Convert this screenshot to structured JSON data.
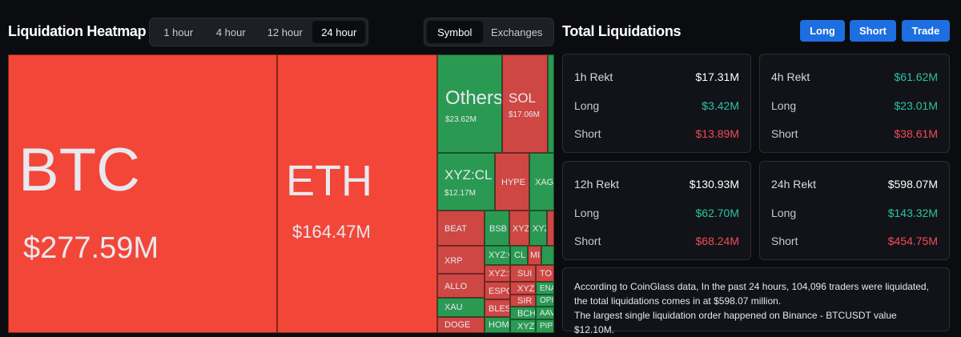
{
  "heatmap": {
    "title": "Liquidation Heatmap",
    "timeframes": [
      "1 hour",
      "4 hour",
      "12 hour",
      "24 hour"
    ],
    "active_timeframe": "24 hour",
    "views": [
      "Symbol",
      "Exchanges"
    ],
    "active_view": "Symbol",
    "tiles": {
      "btc": {
        "symbol": "BTC",
        "value": "$277.59M"
      },
      "eth": {
        "symbol": "ETH",
        "value": "$164.47M"
      },
      "others": {
        "symbol": "Others",
        "value": "$23.62M"
      },
      "sol": {
        "symbol": "SOL",
        "value": "$17.06M"
      },
      "xyzcl": {
        "symbol": "XYZ:CL",
        "value": "$12.17M"
      },
      "hype": {
        "symbol": "HYPE"
      },
      "xag": {
        "symbol": "XAG"
      },
      "beat": {
        "symbol": "BEAT"
      },
      "bsb": {
        "symbol": "BSB"
      },
      "xyz1": {
        "symbol": "XYZ"
      },
      "xyz2": {
        "symbol": "XYZ"
      },
      "xrp": {
        "symbol": "XRP"
      },
      "xyzcl2": {
        "symbol": "XYZ:CL"
      },
      "cl": {
        "symbol": "CL"
      },
      "mi": {
        "symbol": "MI"
      },
      "allo": {
        "symbol": "ALLO"
      },
      "xyzs": {
        "symbol": "XYZ:S"
      },
      "sui": {
        "symbol": "SUI"
      },
      "to": {
        "symbol": "TO"
      },
      "espo": {
        "symbol": "ESPO"
      },
      "xyz3": {
        "symbol": "XYZ"
      },
      "ena": {
        "symbol": "ENA"
      },
      "xau": {
        "symbol": "XAU"
      },
      "sir": {
        "symbol": "SIR"
      },
      "opi": {
        "symbol": "OPI"
      },
      "bles": {
        "symbol": "BLES"
      },
      "bch": {
        "symbol": "BCH"
      },
      "aav": {
        "symbol": "AAV"
      },
      "doge": {
        "symbol": "DOGE"
      },
      "hom": {
        "symbol": "HOM"
      },
      "xyz4": {
        "symbol": "XYZ"
      },
      "pip": {
        "symbol": "PIP"
      }
    }
  },
  "totals": {
    "title": "Total Liquidations",
    "buttons": {
      "long": "Long",
      "short": "Short",
      "trade": "Trade"
    },
    "cards": [
      {
        "title": "1h Rekt",
        "total": "$17.31M",
        "long_label": "Long",
        "long": "$3.42M",
        "short_label": "Short",
        "short": "$13.89M"
      },
      {
        "title": "4h Rekt",
        "total": "$61.62M",
        "long_label": "Long",
        "long": "$23.01M",
        "short_label": "Short",
        "short": "$38.61M"
      },
      {
        "title": "12h Rekt",
        "total": "$130.93M",
        "long_label": "Long",
        "long": "$62.70M",
        "short_label": "Short",
        "short": "$68.24M"
      },
      {
        "title": "24h Rekt",
        "total": "$598.07M",
        "long_label": "Long",
        "long": "$143.32M",
        "short_label": "Short",
        "short": "$454.75M"
      }
    ],
    "info_line1": "According to CoinGlass data, In the past 24 hours, 104,096 traders were liquidated, the total liquidations comes in at $598.07 million.",
    "info_line2": "The largest single liquidation order happened on Binance - BTCUSDT value $12.10M."
  },
  "colors": {
    "accent": "#1d6ee0",
    "long": "#2cc3a6",
    "short": "#f44b55",
    "tile_red": "#f24638",
    "tile_green": "#2a9a53"
  }
}
